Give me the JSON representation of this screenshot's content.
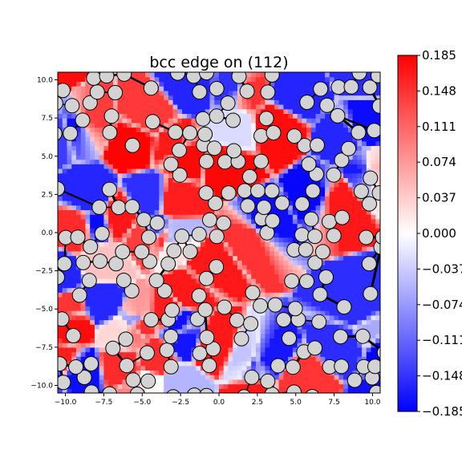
{
  "chart_data": {
    "type": "heatmap",
    "title": "bcc edge on (112)",
    "xlim": [
      -10.5,
      10.5
    ],
    "ylim": [
      -10.5,
      10.5
    ],
    "x_ticks": [
      -10.0,
      -7.5,
      -5.0,
      -2.5,
      0.0,
      2.5,
      5.0,
      7.5,
      10.0
    ],
    "x_tick_labels": [
      "−10.0",
      "−7.5",
      "−5.0",
      "−2.5",
      "0.0",
      "2.5",
      "5.0",
      "7.5",
      "10.0"
    ],
    "y_ticks": [
      -10.0,
      -7.5,
      -5.0,
      -2.5,
      0.0,
      2.5,
      5.0,
      7.5,
      10.0
    ],
    "y_tick_labels": [
      "−10.0",
      "−7.5",
      "−5.0",
      "−2.5",
      "0.0",
      "2.5",
      "5.0",
      "7.5",
      "10.0"
    ],
    "colorbar": {
      "colormap": "bwr",
      "vmin": -0.185,
      "vmax": 0.185,
      "ticks": [
        0.185,
        0.148,
        0.111,
        0.074,
        0.037,
        0.0,
        -0.037,
        -0.074,
        -0.111,
        -0.148,
        -0.185
      ],
      "tick_labels": [
        "0.185",
        "0.148",
        "0.111",
        "0.074",
        "0.037",
        "0.000",
        "−0.037",
        "−0.074",
        "−0.111",
        "−0.148",
        "−0.185"
      ],
      "colors": {
        "low": "#0000ff",
        "mid": "#ffffff",
        "high": "#ff0000"
      }
    },
    "grid": false,
    "atoms": {
      "marker": "circle",
      "face_color": "#d3d3d3",
      "edge_color": "#000000",
      "approx_count": 190,
      "x_range": [
        -10.5,
        10.5
      ],
      "y_range": [
        -10.5,
        10.5
      ]
    },
    "arrows": {
      "color": "#000000",
      "approx_count": 170,
      "description": "differential displacement vectors between neighbouring atoms"
    }
  }
}
